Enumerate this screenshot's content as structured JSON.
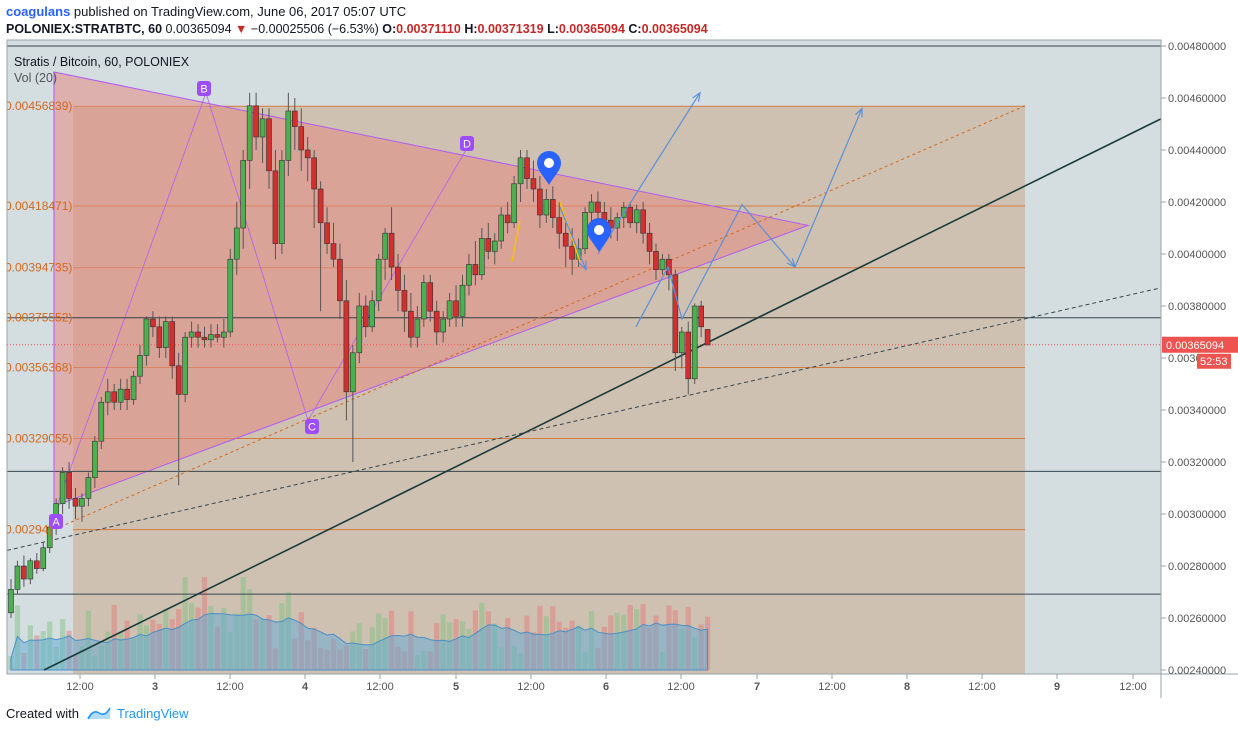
{
  "header": {
    "author": "coagulans",
    "published_text": "published on TradingView.com, June 06, 2017 05:07 UTC",
    "symbol": "POLONIEX:STRATBTC, 60",
    "last": "0.00365094",
    "change": "−0.00025506 (−6.53%)",
    "o_label": "O:",
    "o": "0.00371110",
    "h_label": "H:",
    "h": "0.00371319",
    "l_label": "L:",
    "l": "0.00365094",
    "c_label": "C:",
    "c": "0.00365094"
  },
  "footer": {
    "created_with": "Created with",
    "brand": "TradingView"
  },
  "chart_data": {
    "type": "candlestick",
    "title": "Stratis / Bitcoin, 60, POLONIEX",
    "volume_label": "Vol (20)",
    "y_range": [
      0.0024,
      0.0048
    ],
    "y_ticks": [
      "0.00480000",
      "0.00460000",
      "0.00440000",
      "0.00420000",
      "0.00400000",
      "0.00380000",
      "0.00360000",
      "0.00340000",
      "0.00320000",
      "0.00300000",
      "0.00280000",
      "0.00260000",
      "0.00240000"
    ],
    "x_ticks": [
      "12:00",
      "3",
      "12:00",
      "4",
      "12:00",
      "5",
      "12:00",
      "6",
      "12:00",
      "7",
      "12:00",
      "8",
      "12:00",
      "9",
      "12:00"
    ],
    "last_price_label": "0.00365094",
    "countdown_label": "52:53",
    "fib_levels": [
      {
        "label": "0.00456839)",
        "value": 0.00456839
      },
      {
        "label": "0.00418471)",
        "value": 0.00418471
      },
      {
        "label": "0.00394735)",
        "value": 0.00394735
      },
      {
        "label": "0.00375552)",
        "value": 0.00375552
      },
      {
        "label": "0.00356368)",
        "value": 0.00356368
      },
      {
        "label": "0.00329055)",
        "value": 0.00329055
      },
      {
        "label": "0.00294)",
        "value": 0.00294
      }
    ],
    "pattern_points": [
      {
        "label": "A",
        "x": "Jun 2 ~07:00",
        "y": 0.003
      },
      {
        "label": "B",
        "x": "Jun 3 ~11:00",
        "y": 0.00462
      },
      {
        "label": "C",
        "x": "Jun 4 ~00:00",
        "y": 0.00336
      },
      {
        "label": "D",
        "x": "Jun 5 ~05:00",
        "y": 0.0044
      }
    ],
    "candles": [
      [
        0.00262,
        0.00275,
        0.0026,
        0.00271
      ],
      [
        0.00271,
        0.00282,
        0.00269,
        0.0028
      ],
      [
        0.0028,
        0.00284,
        0.00272,
        0.00275
      ],
      [
        0.00275,
        0.00283,
        0.00273,
        0.00282
      ],
      [
        0.00282,
        0.00285,
        0.00277,
        0.00279
      ],
      [
        0.00279,
        0.00289,
        0.00278,
        0.00287
      ],
      [
        0.00287,
        0.00297,
        0.00285,
        0.00295
      ],
      [
        0.00295,
        0.00306,
        0.00292,
        0.00304
      ],
      [
        0.00304,
        0.00318,
        0.003,
        0.00316
      ],
      [
        0.00316,
        0.0032,
        0.00302,
        0.00306
      ],
      [
        0.00306,
        0.0031,
        0.00298,
        0.00303
      ],
      [
        0.00303,
        0.00308,
        0.00297,
        0.00306
      ],
      [
        0.00306,
        0.00316,
        0.00303,
        0.00314
      ],
      [
        0.00314,
        0.0033,
        0.0031,
        0.00328
      ],
      [
        0.00328,
        0.00345,
        0.00325,
        0.00343
      ],
      [
        0.00343,
        0.00352,
        0.00338,
        0.00347
      ],
      [
        0.00347,
        0.0035,
        0.0034,
        0.00343
      ],
      [
        0.00343,
        0.00352,
        0.0034,
        0.00348
      ],
      [
        0.00348,
        0.00352,
        0.0034,
        0.00344
      ],
      [
        0.00344,
        0.00355,
        0.00342,
        0.00353
      ],
      [
        0.00353,
        0.00365,
        0.0035,
        0.00361
      ],
      [
        0.00361,
        0.00376,
        0.00357,
        0.00375
      ],
      [
        0.00375,
        0.00378,
        0.00368,
        0.00372
      ],
      [
        0.00372,
        0.00376,
        0.0036,
        0.00364
      ],
      [
        0.00364,
        0.00376,
        0.0036,
        0.00374
      ],
      [
        0.00374,
        0.00376,
        0.00352,
        0.00357
      ],
      [
        0.00357,
        0.00362,
        0.00311,
        0.00346
      ],
      [
        0.00346,
        0.0037,
        0.00343,
        0.00368
      ],
      [
        0.00368,
        0.00374,
        0.00364,
        0.0037
      ],
      [
        0.0037,
        0.00373,
        0.00364,
        0.00368
      ],
      [
        0.00368,
        0.00372,
        0.00364,
        0.00367
      ],
      [
        0.00367,
        0.00373,
        0.00364,
        0.00369
      ],
      [
        0.00369,
        0.00373,
        0.00366,
        0.00368
      ],
      [
        0.00368,
        0.00375,
        0.00364,
        0.0037
      ],
      [
        0.0037,
        0.00402,
        0.00368,
        0.00398
      ],
      [
        0.00398,
        0.0042,
        0.00392,
        0.0041
      ],
      [
        0.0041,
        0.0044,
        0.00402,
        0.00436
      ],
      [
        0.00436,
        0.00462,
        0.00425,
        0.00457
      ],
      [
        0.00457,
        0.00462,
        0.0044,
        0.00445
      ],
      [
        0.00445,
        0.00456,
        0.00435,
        0.00452
      ],
      [
        0.00452,
        0.00456,
        0.00425,
        0.00432
      ],
      [
        0.00432,
        0.0044,
        0.00398,
        0.00404
      ],
      [
        0.00404,
        0.0044,
        0.004,
        0.00436
      ],
      [
        0.00436,
        0.00462,
        0.0043,
        0.00455
      ],
      [
        0.00455,
        0.0046,
        0.0044,
        0.00449
      ],
      [
        0.00449,
        0.00456,
        0.00432,
        0.0044
      ],
      [
        0.0044,
        0.00445,
        0.00428,
        0.00437
      ],
      [
        0.00437,
        0.0044,
        0.0041,
        0.00425
      ],
      [
        0.00425,
        0.00428,
        0.00378,
        0.00412
      ],
      [
        0.00412,
        0.00418,
        0.004,
        0.00404
      ],
      [
        0.00404,
        0.00412,
        0.00395,
        0.00398
      ],
      [
        0.00398,
        0.00404,
        0.00375,
        0.00382
      ],
      [
        0.00382,
        0.0039,
        0.00336,
        0.00347
      ],
      [
        0.00347,
        0.00365,
        0.0032,
        0.00362
      ],
      [
        0.00362,
        0.00385,
        0.00358,
        0.0038
      ],
      [
        0.0038,
        0.00384,
        0.00368,
        0.00372
      ],
      [
        0.00372,
        0.00386,
        0.0037,
        0.00382
      ],
      [
        0.00382,
        0.004,
        0.00378,
        0.00398
      ],
      [
        0.00398,
        0.0041,
        0.0039,
        0.00408
      ],
      [
        0.00408,
        0.00418,
        0.0039,
        0.00395
      ],
      [
        0.00395,
        0.004,
        0.00378,
        0.00386
      ],
      [
        0.00386,
        0.00392,
        0.0037,
        0.00378
      ],
      [
        0.00378,
        0.00385,
        0.00364,
        0.00368
      ],
      [
        0.00368,
        0.0038,
        0.00364,
        0.00375
      ],
      [
        0.00375,
        0.00392,
        0.00372,
        0.00389
      ],
      [
        0.00389,
        0.00392,
        0.00374,
        0.00378
      ],
      [
        0.00378,
        0.00382,
        0.00365,
        0.0037
      ],
      [
        0.0037,
        0.00378,
        0.00366,
        0.00375
      ],
      [
        0.00375,
        0.00385,
        0.00372,
        0.00382
      ],
      [
        0.00382,
        0.00388,
        0.00372,
        0.00376
      ],
      [
        0.00376,
        0.00392,
        0.00372,
        0.00388
      ],
      [
        0.00388,
        0.004,
        0.00384,
        0.00396
      ],
      [
        0.00396,
        0.00405,
        0.00388,
        0.00392
      ],
      [
        0.00392,
        0.0041,
        0.0039,
        0.00406
      ],
      [
        0.00406,
        0.00412,
        0.00398,
        0.00401
      ],
      [
        0.00401,
        0.00408,
        0.00396,
        0.00405
      ],
      [
        0.00405,
        0.00418,
        0.00402,
        0.00415
      ],
      [
        0.00415,
        0.0042,
        0.00408,
        0.00412
      ],
      [
        0.00412,
        0.0043,
        0.0041,
        0.00427
      ],
      [
        0.00427,
        0.0044,
        0.0042,
        0.00437
      ],
      [
        0.00437,
        0.0044,
        0.00425,
        0.00429
      ],
      [
        0.00429,
        0.00436,
        0.0042,
        0.00425
      ],
      [
        0.00425,
        0.0043,
        0.0041,
        0.00415
      ],
      [
        0.00415,
        0.00425,
        0.00412,
        0.00421
      ],
      [
        0.00421,
        0.00426,
        0.0041,
        0.00414
      ],
      [
        0.00414,
        0.0042,
        0.00402,
        0.00408
      ],
      [
        0.00408,
        0.00412,
        0.00395,
        0.00403
      ],
      [
        0.00403,
        0.0041,
        0.00392,
        0.00398
      ],
      [
        0.00398,
        0.00406,
        0.00395,
        0.00402
      ],
      [
        0.00402,
        0.00418,
        0.004,
        0.00416
      ],
      [
        0.00416,
        0.00423,
        0.00412,
        0.0042
      ],
      [
        0.0042,
        0.00424,
        0.00412,
        0.00416
      ],
      [
        0.00416,
        0.0042,
        0.0041,
        0.00413
      ],
      [
        0.00413,
        0.00418,
        0.00406,
        0.0041
      ],
      [
        0.0041,
        0.00416,
        0.00405,
        0.00414
      ],
      [
        0.00414,
        0.0042,
        0.0041,
        0.00418
      ],
      [
        0.00418,
        0.0042,
        0.0041,
        0.00412
      ],
      [
        0.00412,
        0.00419,
        0.00408,
        0.00417
      ],
      [
        0.00417,
        0.0042,
        0.00404,
        0.00408
      ],
      [
        0.00408,
        0.00412,
        0.00396,
        0.00401
      ],
      [
        0.00401,
        0.00404,
        0.0039,
        0.00394
      ],
      [
        0.00394,
        0.004,
        0.00392,
        0.00398
      ],
      [
        0.00398,
        0.004,
        0.00386,
        0.00392
      ],
      [
        0.00392,
        0.00394,
        0.00355,
        0.00362
      ],
      [
        0.00362,
        0.00372,
        0.00356,
        0.0037
      ],
      [
        0.0037,
        0.00374,
        0.00346,
        0.00352
      ],
      [
        0.00352,
        0.00381,
        0.0035,
        0.0038
      ],
      [
        0.0038,
        0.00382,
        0.00368,
        0.00372
      ],
      [
        0.00371,
        0.00371,
        0.00365,
        0.00365
      ]
    ]
  }
}
